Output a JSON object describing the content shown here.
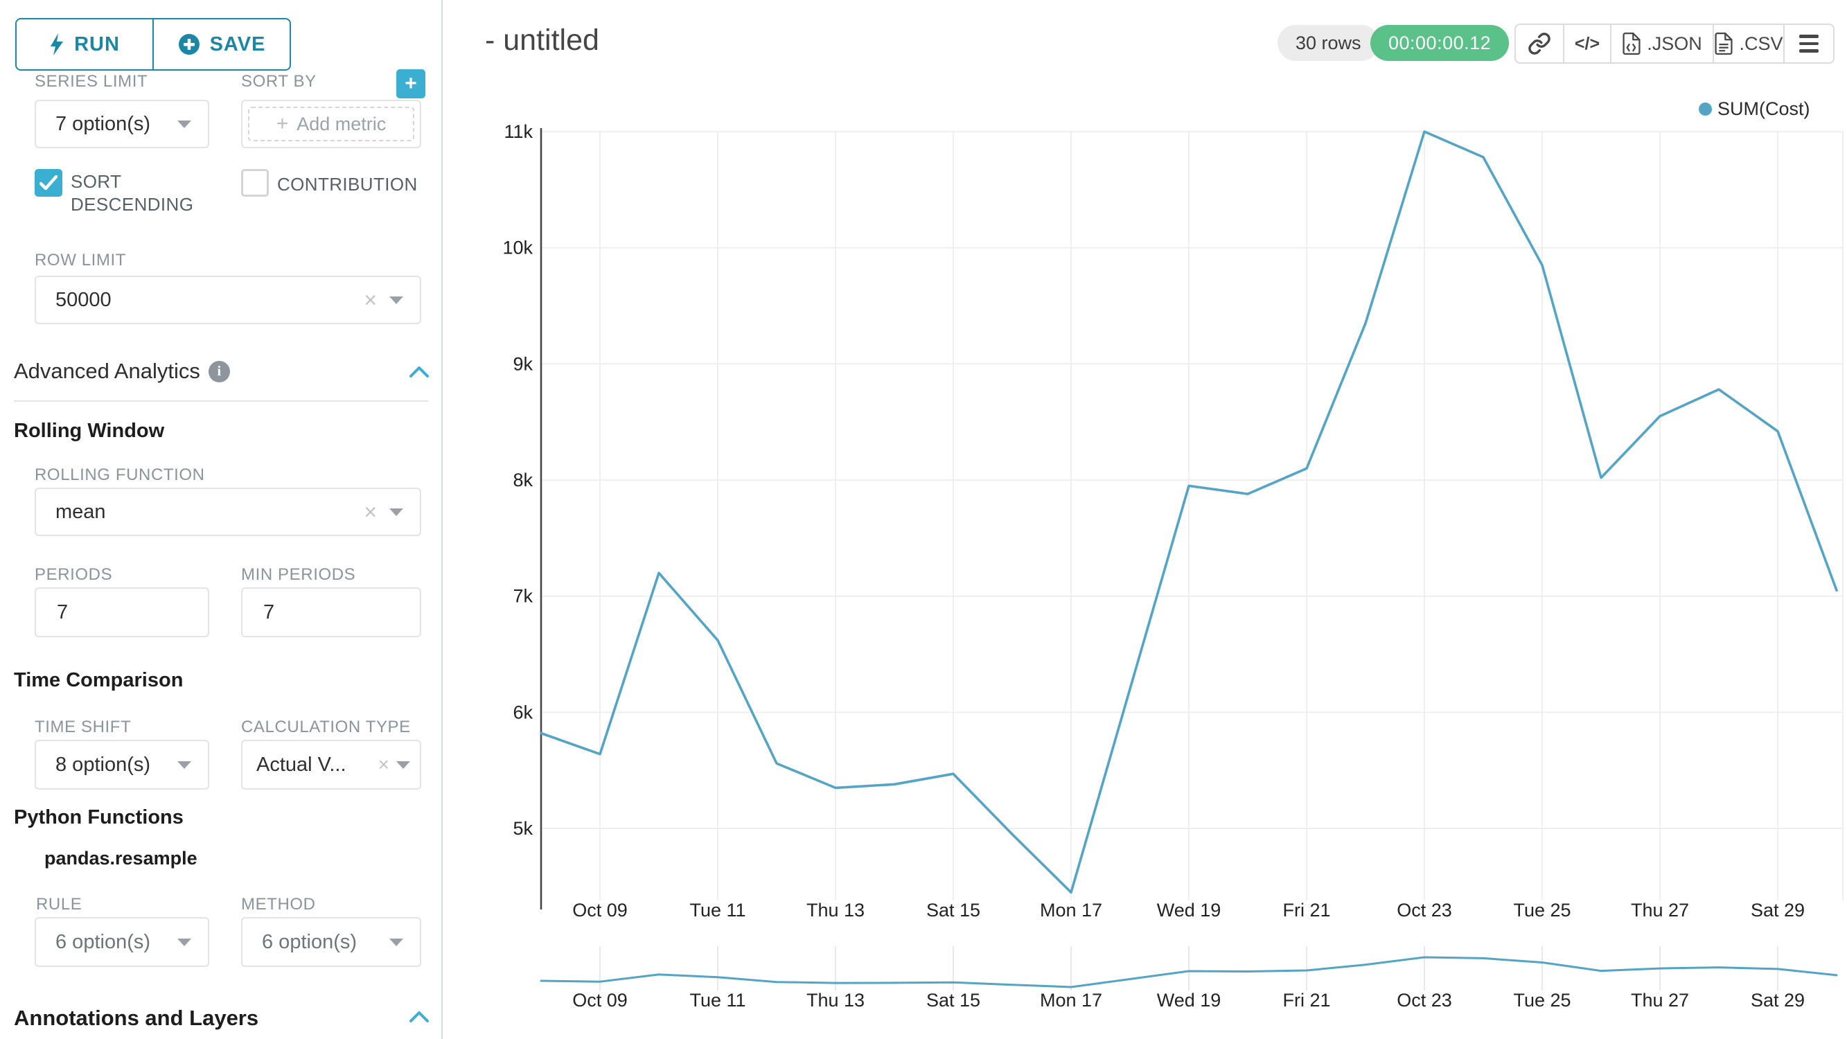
{
  "colors": {
    "primary": "#1b87a6",
    "accent": "#3aafd2",
    "line": "#54a4c6",
    "green_badge": "#5ac189",
    "grid": "#ececec",
    "axis": "#474747"
  },
  "sidebar": {
    "run_label": "RUN",
    "save_label": "SAVE",
    "series_limit_label": "SERIES LIMIT",
    "series_limit_value": "7 option(s)",
    "sort_by_label": "SORT BY",
    "add_metric_label": "Add metric",
    "sort_descending_label": "SORT DESCENDING",
    "contribution_label": "CONTRIBUTION",
    "row_limit_label": "ROW LIMIT",
    "row_limit_value": "50000",
    "advanced_analytics_title": "Advanced Analytics",
    "rolling_window_title": "Rolling Window",
    "rolling_function_label": "ROLLING FUNCTION",
    "rolling_function_value": "mean",
    "periods_label": "PERIODS",
    "periods_value": "7",
    "min_periods_label": "MIN PERIODS",
    "min_periods_value": "7",
    "time_comparison_title": "Time Comparison",
    "time_shift_label": "TIME SHIFT",
    "time_shift_value": "8 option(s)",
    "calculation_type_label": "CALCULATION TYPE",
    "calculation_type_value": "Actual V...",
    "python_functions_title": "Python Functions",
    "pandas_resample_label": "pandas.resample",
    "rule_label": "RULE",
    "rule_value": "6 option(s)",
    "method_label": "METHOD",
    "method_value": "6 option(s)",
    "annotations_title": "Annotations and Layers"
  },
  "header": {
    "title": "- untitled",
    "rows_badge": "30 rows",
    "timer_badge": "00:00:00.12",
    "code_label": "</>",
    "json_label": ".JSON",
    "csv_label": ".CSV"
  },
  "legend": {
    "series_label": "SUM(Cost)"
  },
  "chart_data": {
    "type": "line",
    "title": "- untitled",
    "legend_entries": [
      "SUM(Cost)"
    ],
    "legend_position": "top-right",
    "grid": true,
    "x": [
      "Oct 08",
      "Oct 09",
      "Oct 10",
      "Oct 11",
      "Oct 12",
      "Oct 13",
      "Oct 14",
      "Oct 15",
      "Oct 16",
      "Oct 17",
      "Oct 18",
      "Oct 19",
      "Oct 20",
      "Oct 21",
      "Oct 22",
      "Oct 23",
      "Oct 24",
      "Oct 25",
      "Oct 26",
      "Oct 27",
      "Oct 28",
      "Oct 29",
      "Oct 30"
    ],
    "series": [
      {
        "name": "SUM(Cost)",
        "values": [
          5820,
          5640,
          7200,
          6620,
          5560,
          5350,
          5380,
          5470,
          4950,
          4450,
          6200,
          7950,
          7880,
          8100,
          9350,
          11000,
          10780,
          9850,
          8020,
          8550,
          8780,
          8420,
          7050
        ]
      }
    ],
    "x_tick_labels": [
      "Oct 09",
      "Tue 11",
      "Thu 13",
      "Sat 15",
      "Mon 17",
      "Wed 19",
      "Fri 21",
      "Oct 23",
      "Tue 25",
      "Thu 27",
      "Sat 29"
    ],
    "x_tick_indices": [
      1,
      3,
      5,
      7,
      9,
      11,
      13,
      15,
      17,
      19,
      21
    ],
    "y_ticks": [
      5000,
      6000,
      7000,
      8000,
      9000,
      10000,
      11000
    ],
    "y_tick_labels": [
      "5k",
      "6k",
      "7k",
      "8k",
      "9k",
      "10k",
      "11k"
    ],
    "ylim": [
      4380,
      11000
    ],
    "has_mini_preview": true
  }
}
